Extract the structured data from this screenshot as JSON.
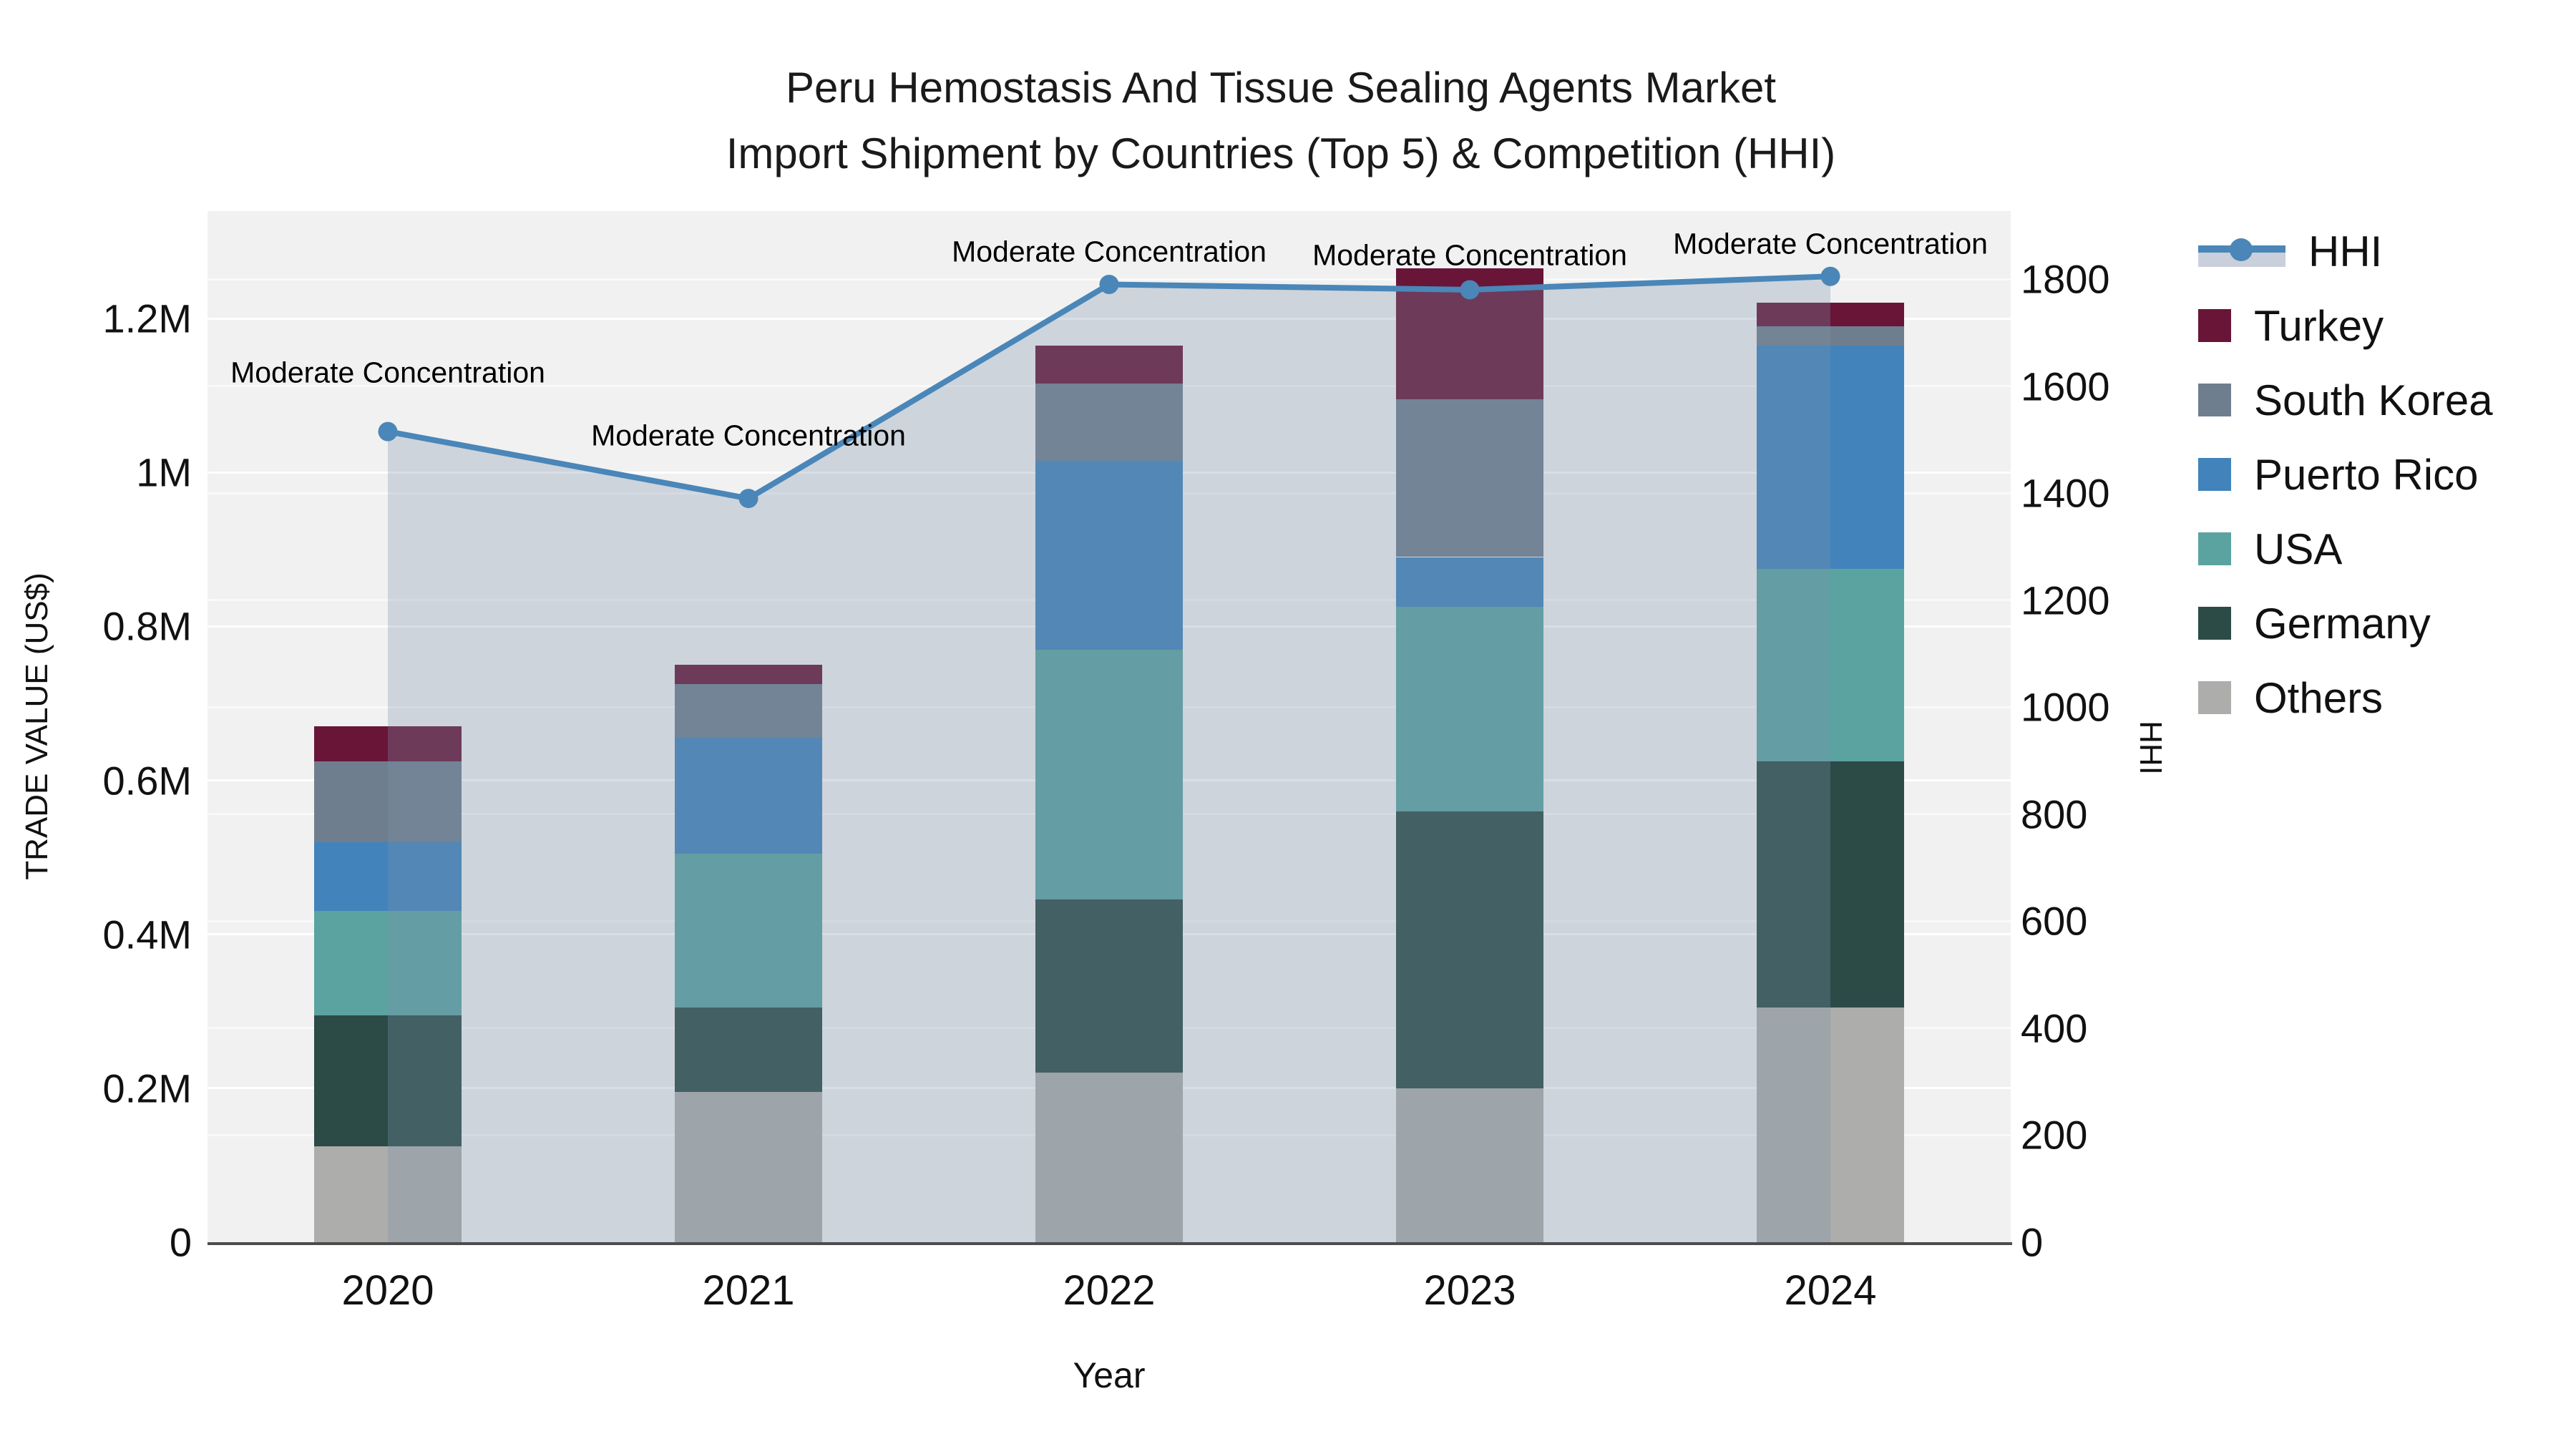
{
  "title": {
    "line1": "Peru Hemostasis And Tissue Sealing Agents Market",
    "line2": "Import Shipment by Countries (Top 5) & Competition (HHI)"
  },
  "y_left_axis": {
    "title": "TRADE VALUE (US$)"
  },
  "y_right_axis": {
    "title": "HHI"
  },
  "x_axis": {
    "title": "Year"
  },
  "legend": {
    "items": [
      {
        "label": "HHI",
        "type": "line",
        "color": "#4A86B8",
        "band_color": "#C9CFDB"
      },
      {
        "label": "Turkey",
        "type": "square",
        "color": "#681538"
      },
      {
        "label": "South Korea",
        "type": "square",
        "color": "#6F7E8E"
      },
      {
        "label": "Puerto Rico",
        "type": "square",
        "color": "#4283BB"
      },
      {
        "label": "USA",
        "type": "square",
        "color": "#5BA3A1"
      },
      {
        "label": "Germany",
        "type": "square",
        "color": "#2C4B47"
      },
      {
        "label": "Others",
        "type": "square",
        "color": "#ADADAB"
      }
    ]
  },
  "colors": {
    "plot_background": "#F1F1F1",
    "figure_background": "#FFFFFF",
    "hhi_line": "#4A86B8",
    "hhi_area_fill": "rgba(124,146,168,0.30)",
    "axis_line": "#4C4C4C",
    "gridline": "rgba(255,255,255,0.95)"
  },
  "chart_data": {
    "type": "bar+line",
    "title": "Peru Hemostasis And Tissue Sealing Agents Market Import Shipment by Countries (Top 5) & Competition (HHI)",
    "categories": [
      "2020",
      "2021",
      "2022",
      "2023",
      "2024"
    ],
    "bar_stack_order_note": "series listed bottom-to-top of stack; values in US$",
    "series": [
      {
        "name": "Others",
        "color": "#ADADAB",
        "values": [
          125000,
          195000,
          220000,
          200000,
          305000
        ]
      },
      {
        "name": "Germany",
        "color": "#2C4B47",
        "values": [
          170000,
          110000,
          225000,
          360000,
          320000
        ]
      },
      {
        "name": "USA",
        "color": "#5BA3A1",
        "values": [
          135000,
          200000,
          325000,
          265000,
          250000
        ]
      },
      {
        "name": "Puerto Rico",
        "color": "#4283BB",
        "values": [
          90000,
          150000,
          245000,
          65000,
          290000
        ]
      },
      {
        "name": "South Korea",
        "color": "#6F7E8E",
        "values": [
          105000,
          70000,
          100000,
          205000,
          25000
        ]
      },
      {
        "name": "Turkey",
        "color": "#681538",
        "values": [
          45000,
          25000,
          50000,
          170000,
          30000
        ]
      }
    ],
    "bar_totals": [
      670000,
      750000,
      1165000,
      1265000,
      1220000
    ],
    "line_series": {
      "name": "HHI",
      "axis": "right",
      "color": "#4A86B8",
      "values": [
        1515,
        1390,
        1790,
        1780,
        1805
      ]
    },
    "annotations": [
      {
        "x": "2020",
        "text": "Moderate Concentration"
      },
      {
        "x": "2021",
        "text": "Moderate Concentration"
      },
      {
        "x": "2022",
        "text": "Moderate Concentration"
      },
      {
        "x": "2023",
        "text": "Moderate Concentration"
      },
      {
        "x": "2024",
        "text": "Moderate Concentration"
      }
    ],
    "xlabel": "Year",
    "ylabel_left": "TRADE VALUE (US$)",
    "ylabel_right": "HHI",
    "ylim_left": [
      0,
      1340000
    ],
    "ylim_right": [
      0,
      1927
    ],
    "grid": true,
    "legend_position": "right",
    "y_left_ticks": [
      {
        "label": "0",
        "value": 0
      },
      {
        "label": "0.2M",
        "value": 200000
      },
      {
        "label": "0.4M",
        "value": 400000
      },
      {
        "label": "0.6M",
        "value": 600000
      },
      {
        "label": "0.8M",
        "value": 800000
      },
      {
        "label": "1M",
        "value": 1000000
      },
      {
        "label": "1.2M",
        "value": 1200000
      }
    ],
    "y_right_ticks": [
      {
        "label": "0",
        "value": 0
      },
      {
        "label": "200",
        "value": 200
      },
      {
        "label": "400",
        "value": 400
      },
      {
        "label": "600",
        "value": 600
      },
      {
        "label": "800",
        "value": 800
      },
      {
        "label": "1000",
        "value": 1000
      },
      {
        "label": "1200",
        "value": 1200
      },
      {
        "label": "1400",
        "value": 1400
      },
      {
        "label": "1600",
        "value": 1600
      },
      {
        "label": "1800",
        "value": 1800
      }
    ]
  }
}
